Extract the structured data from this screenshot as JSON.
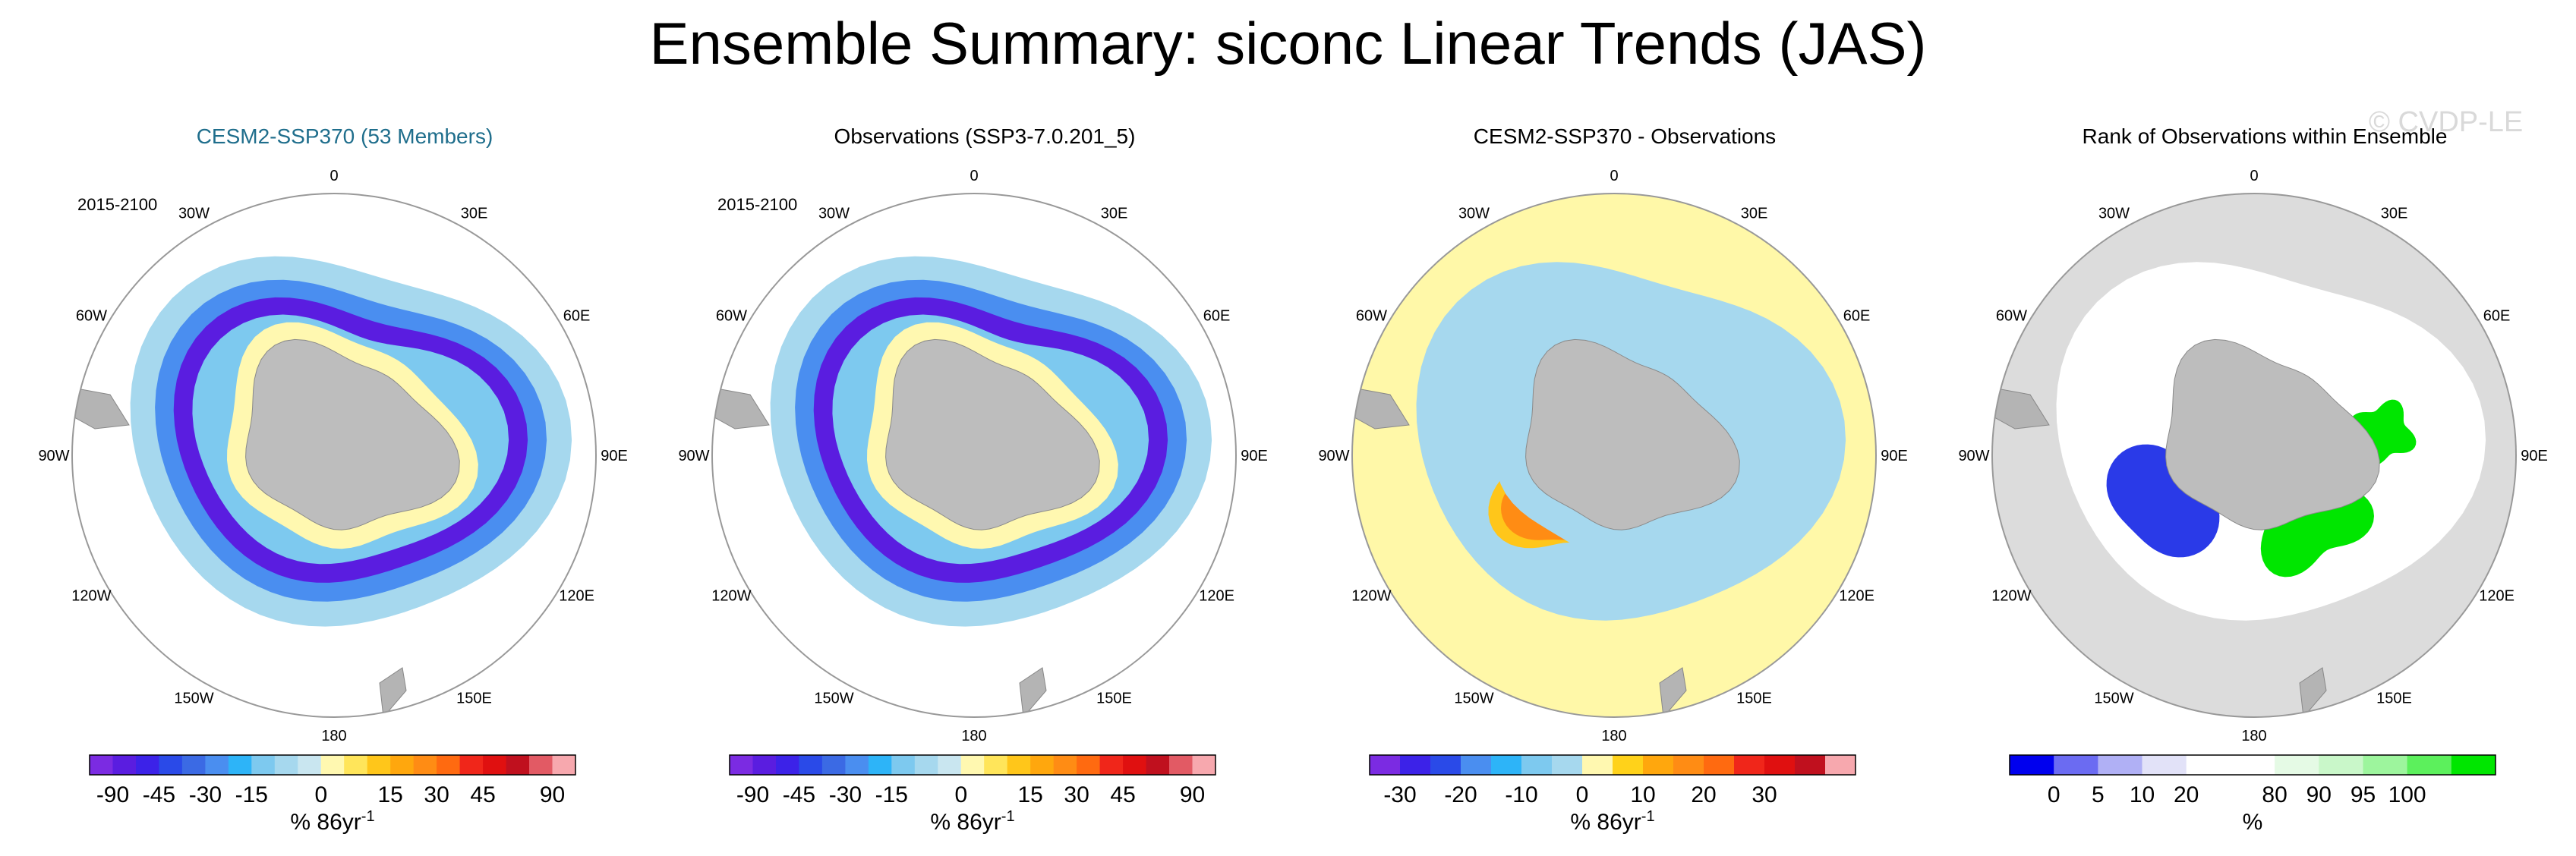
{
  "title": "Ensemble Summary: siconc Linear Trends (JAS)",
  "watermark": "© CVDP-LE",
  "lon_labels": [
    "0",
    "30E",
    "60E",
    "90E",
    "120E",
    "150E",
    "180",
    "150W",
    "120W",
    "90W",
    "60W",
    "30W"
  ],
  "chart_data": [
    {
      "type": "heatmap",
      "title": "CESM2-SSP370 (53 Members)",
      "period": "2015-2100",
      "variable": "siconc linear trend",
      "season": "JAS",
      "colorbar": {
        "colors": [
          "#7b2be2",
          "#5a1de0",
          "#3c22e8",
          "#2a4ae8",
          "#3b6ae4",
          "#4a8ef0",
          "#2db4f8",
          "#7dc9ef",
          "#a6d8ee",
          "#c9e6f0",
          "#fff8b0",
          "#ffe55a",
          "#ffc61a",
          "#ffa70d",
          "#ff8c14",
          "#ff6a10",
          "#f0261a",
          "#e01010",
          "#c0101e",
          "#e25a64",
          "#f7a8ae"
        ],
        "ticks": [
          -90,
          -45,
          -30,
          -15,
          0,
          15,
          30,
          45,
          90
        ],
        "tick_labels": [
          "-90",
          "-45",
          "-30",
          "-15",
          "0",
          "15",
          "30",
          "45",
          "90"
        ]
      },
      "units": "% 86yr",
      "units_exp": "-1"
    },
    {
      "type": "heatmap",
      "title": "Observations (SSP3-7.0.201_5)",
      "period": "2015-2100",
      "variable": "siconc linear trend",
      "season": "JAS",
      "colorbar": {
        "colors": [
          "#7b2be2",
          "#5a1de0",
          "#3c22e8",
          "#2a4ae8",
          "#3b6ae4",
          "#4a8ef0",
          "#2db4f8",
          "#7dc9ef",
          "#a6d8ee",
          "#c9e6f0",
          "#fff8b0",
          "#ffe55a",
          "#ffc61a",
          "#ffa70d",
          "#ff8c14",
          "#ff6a10",
          "#f0261a",
          "#e01010",
          "#c0101e",
          "#e25a64",
          "#f7a8ae"
        ],
        "ticks": [
          -90,
          -45,
          -30,
          -15,
          0,
          15,
          30,
          45,
          90
        ],
        "tick_labels": [
          "-90",
          "-45",
          "-30",
          "-15",
          "0",
          "15",
          "30",
          "45",
          "90"
        ]
      },
      "units": "% 86yr",
      "units_exp": "-1"
    },
    {
      "type": "heatmap",
      "title": "CESM2-SSP370 - Observations",
      "variable": "siconc trend difference",
      "season": "JAS",
      "colorbar": {
        "colors": [
          "#7b2be2",
          "#3c22e8",
          "#2a4ae8",
          "#4a8ef0",
          "#2db4f8",
          "#7dc9ef",
          "#a6d8ee",
          "#fff8b0",
          "#ffd21a",
          "#ffa70d",
          "#ff8c14",
          "#ff6a10",
          "#f0261a",
          "#e01010",
          "#c0101e",
          "#f7a8ae"
        ],
        "ticks": [
          -30,
          -20,
          -10,
          0,
          10,
          20,
          30
        ],
        "tick_labels": [
          "-30",
          "-20",
          "-10",
          "0",
          "10",
          "20",
          "30"
        ]
      },
      "units": "% 86yr",
      "units_exp": "-1"
    },
    {
      "type": "heatmap",
      "title": "Rank of Observations within Ensemble",
      "variable": "rank",
      "colorbar": {
        "colors": [
          "#0000ee",
          "#6b6bf2",
          "#b0b0f5",
          "#e2e2f8",
          "#ffffff",
          "#ffffff",
          "#e5fae5",
          "#c9f7c9",
          "#9df59d",
          "#5cf05c",
          "#00e600"
        ],
        "ticks": [
          0,
          5,
          10,
          20,
          80,
          90,
          95,
          100
        ],
        "tick_labels": [
          "0",
          "5",
          "10",
          "20",
          "80",
          "90",
          "95",
          "100"
        ]
      },
      "units": "%",
      "units_exp": ""
    }
  ]
}
